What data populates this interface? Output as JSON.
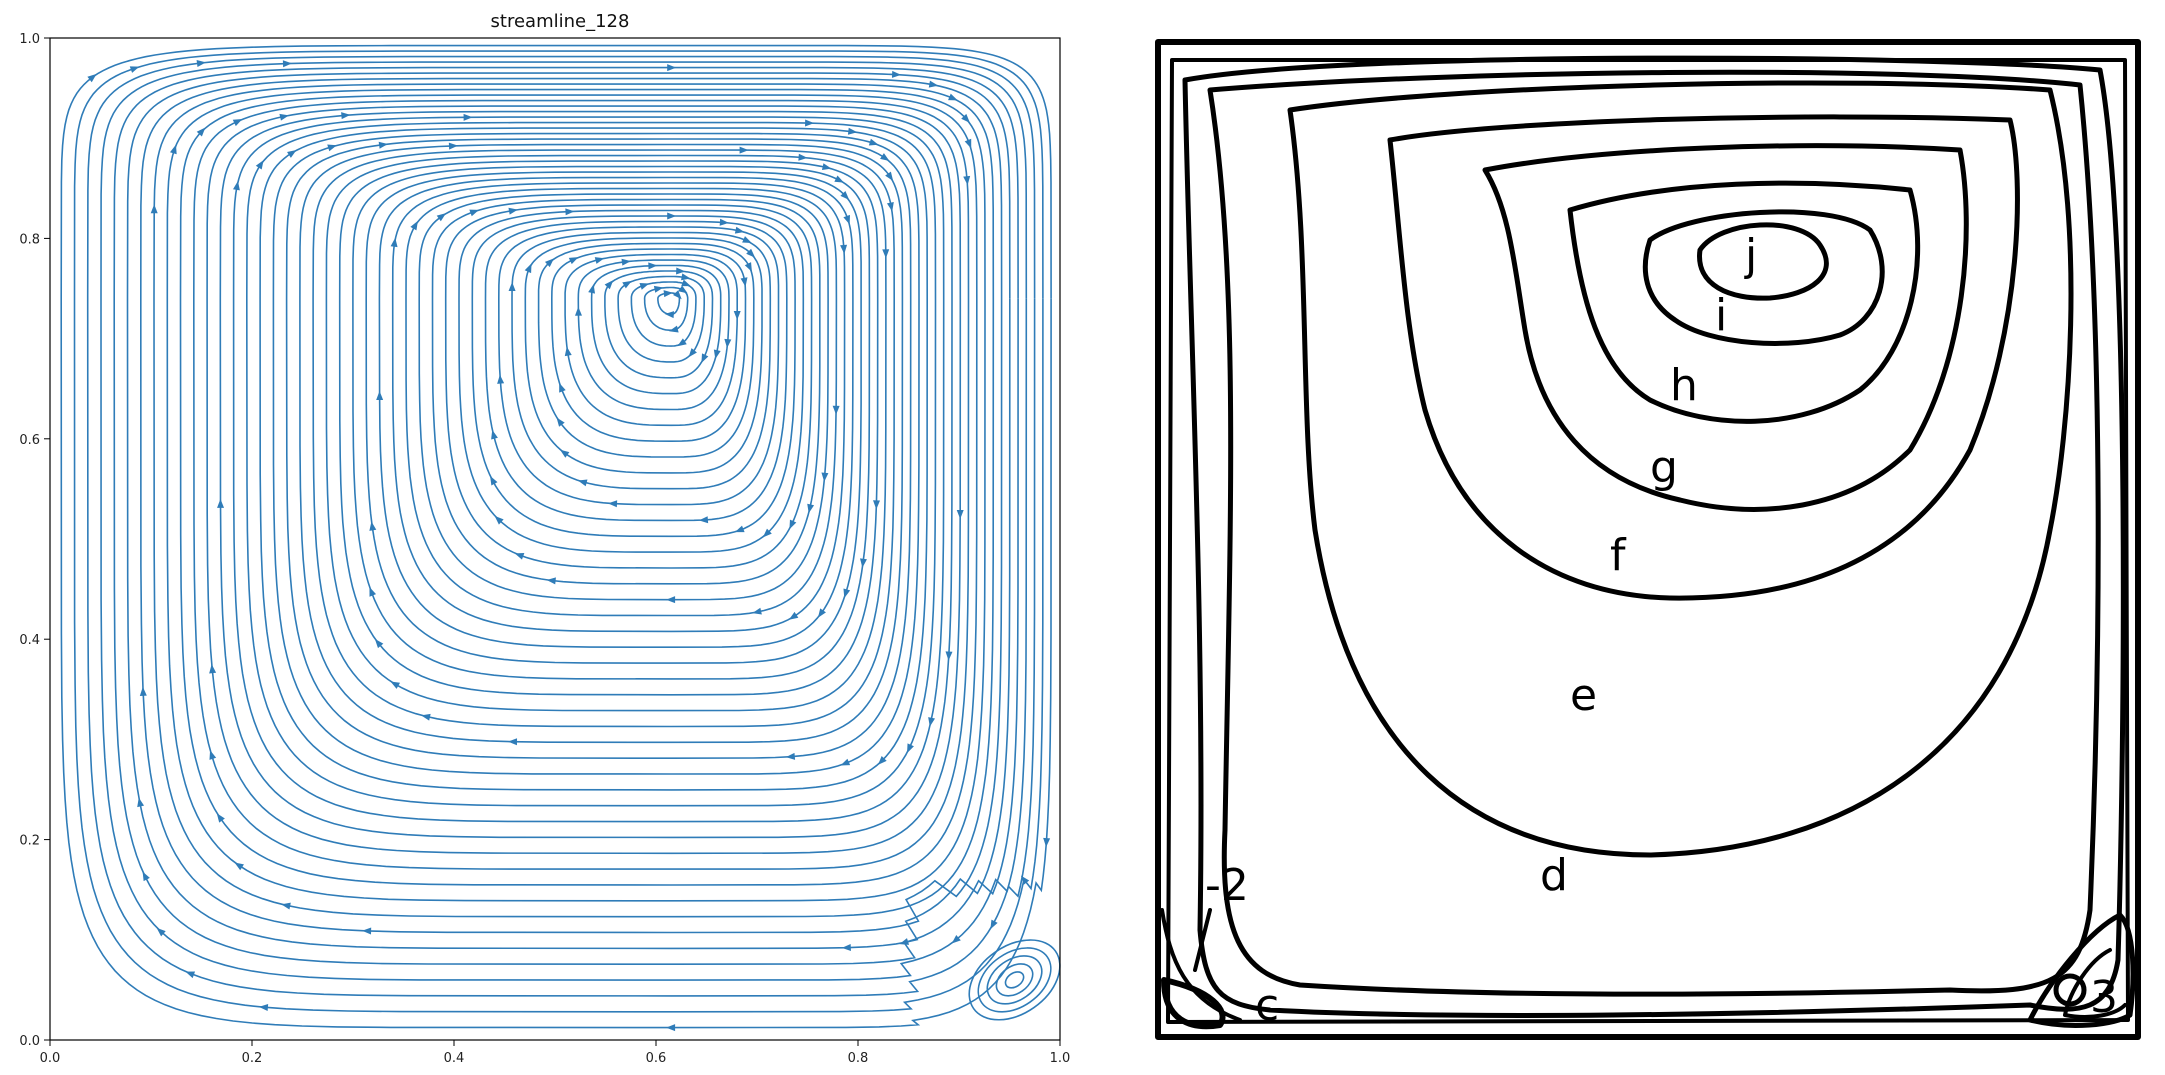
{
  "chart_data": [
    {
      "type": "streamline",
      "title": "streamline_128",
      "xlabel": "",
      "ylabel": "",
      "xlim": [
        0.0,
        1.0
      ],
      "ylim": [
        0.0,
        1.0
      ],
      "x_ticks": [
        "0.0",
        "0.2",
        "0.4",
        "0.6",
        "0.8",
        "1.0"
      ],
      "y_ticks": [
        "0.0",
        "0.2",
        "0.4",
        "0.6",
        "0.8",
        "1.0"
      ],
      "primary_vortex_center": [
        0.615,
        0.74
      ],
      "secondary_vortex_center": [
        0.955,
        0.06
      ],
      "grid": false,
      "line_color": "#2f7cb8"
    },
    {
      "type": "contour",
      "contour_labels": [
        "j",
        "i",
        "h",
        "g",
        "f",
        "e",
        "d",
        "c",
        "-2",
        "3"
      ],
      "line_color": "#000000"
    }
  ]
}
